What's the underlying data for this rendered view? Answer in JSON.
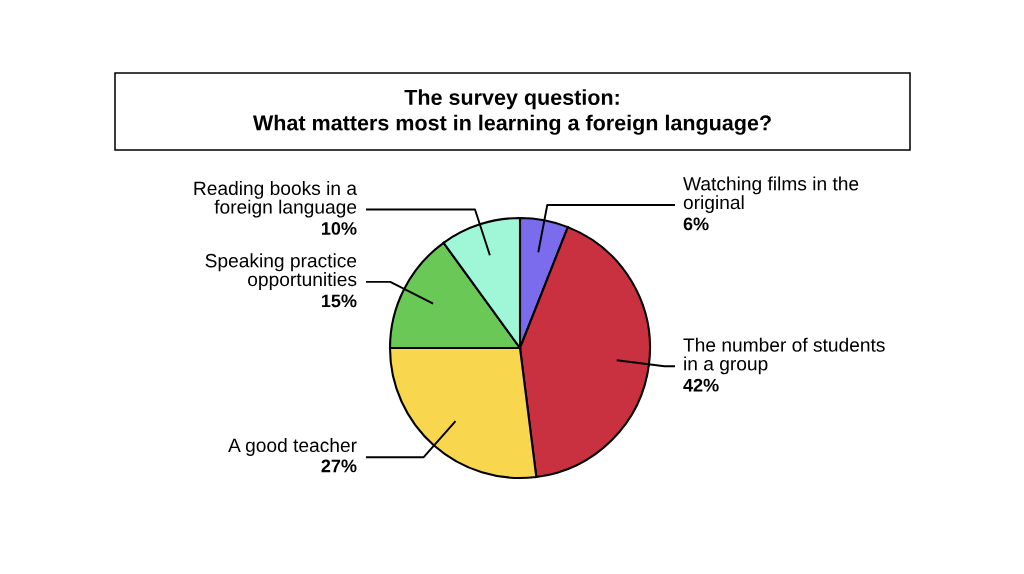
{
  "chart_data": {
    "type": "pie",
    "title": "The survey question:\nWhat matters most in learning a foreign language?",
    "categories": [
      "Watching films in the\noriginal",
      "The number of students\nin a group",
      "A good teacher",
      "Speaking practice\nopportunities",
      "Reading books in a\nforeign language"
    ],
    "values": [
      6,
      42,
      27,
      15,
      10
    ],
    "colors": [
      "#7a6cec",
      "#c93040",
      "#f8d64e",
      "#6ac857",
      "#9ff7d8"
    ],
    "value_labels": [
      "6%",
      "42%",
      "27%",
      "15%",
      "10%"
    ]
  }
}
